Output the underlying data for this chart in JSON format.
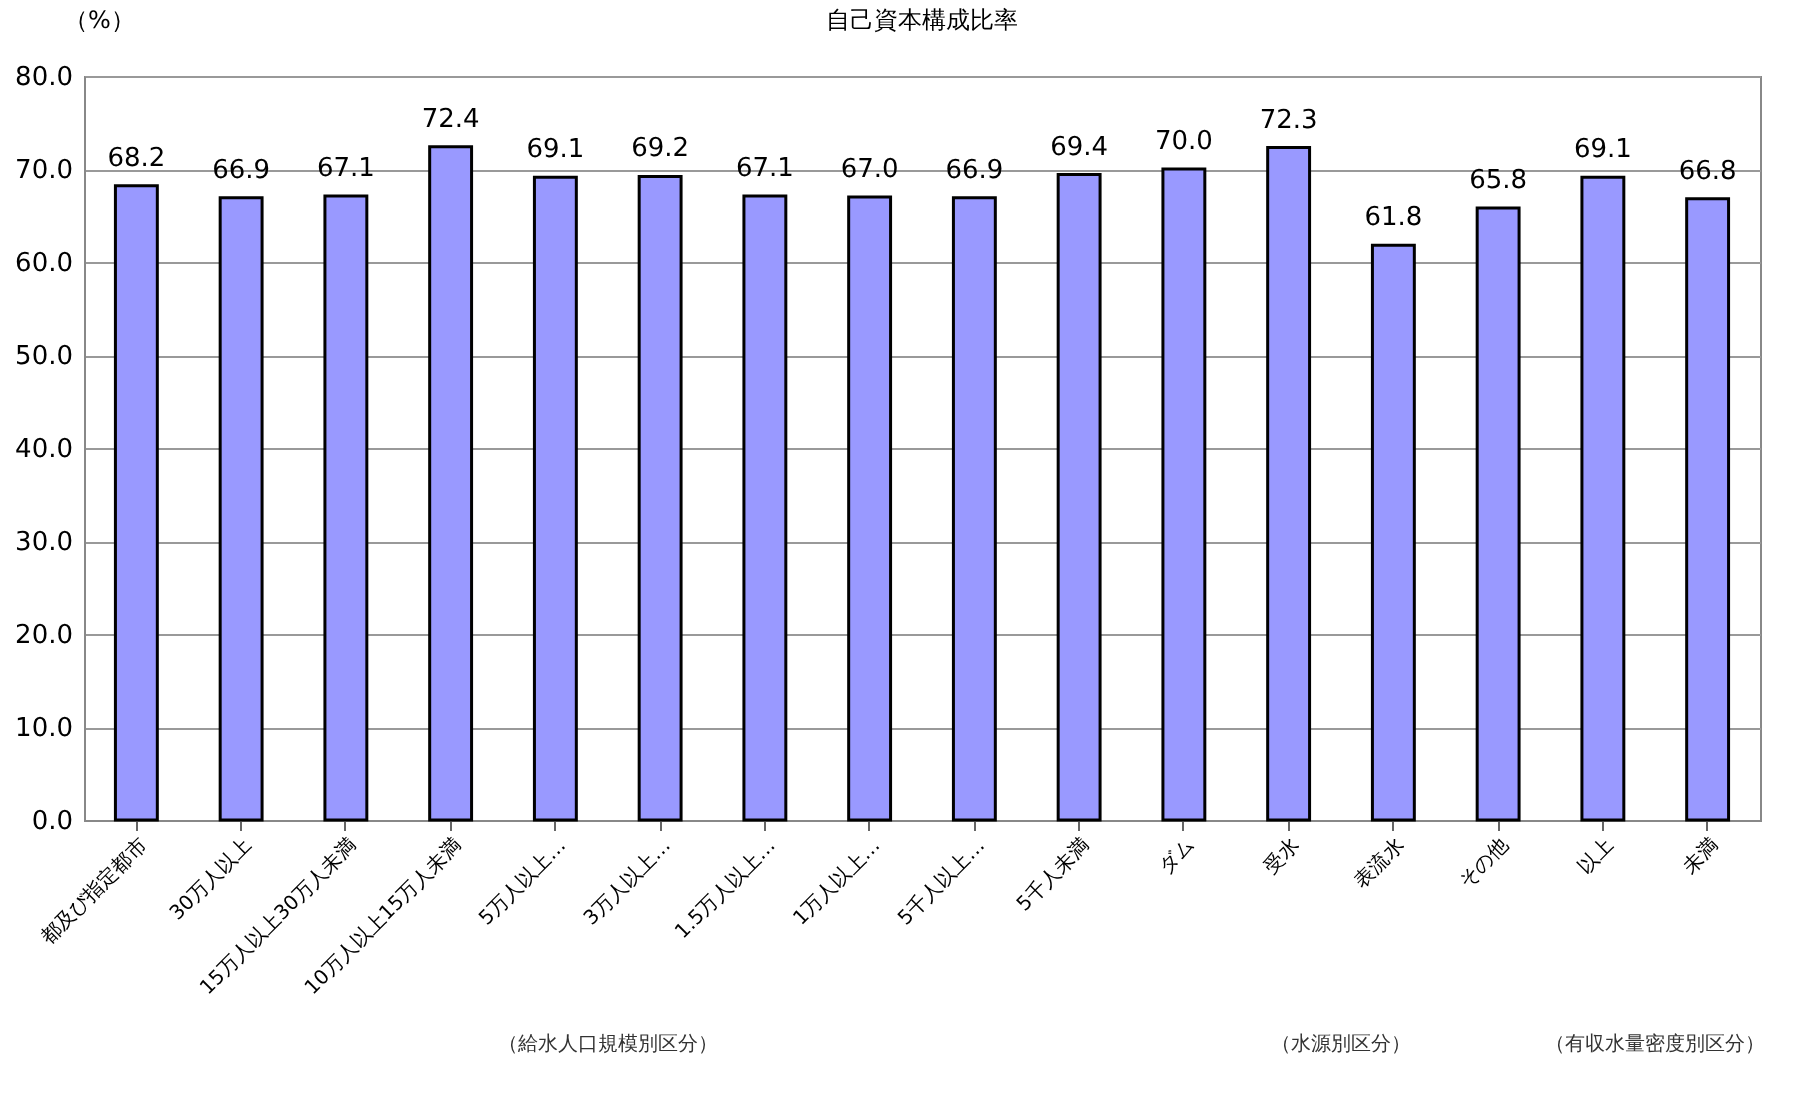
{
  "chart_data": {
    "type": "bar",
    "title": "自己資本構成比率",
    "ylabel": "（%）",
    "categories": [
      "都及び指定都市",
      "30万人以上",
      "15万人以上30万人未満",
      "10万人以上15万人未満",
      "5万人以上…",
      "3万人以上…",
      "1.5万人以上…",
      "1万人以上…",
      "5千人以上…",
      "5千人未満",
      "ダム",
      "受水",
      "表流水",
      "その他",
      "以上",
      "未満"
    ],
    "values": [
      68.2,
      66.9,
      67.1,
      72.4,
      69.1,
      69.2,
      67.1,
      67.0,
      66.9,
      69.4,
      70.0,
      72.3,
      61.8,
      65.8,
      69.1,
      66.8
    ],
    "color": "#9999ff",
    "ylim": [
      0,
      80
    ],
    "yticks": [
      {
        "value": 0,
        "label": "0.0"
      },
      {
        "value": 10,
        "label": "10.0"
      },
      {
        "value": 20,
        "label": "20.0"
      },
      {
        "value": 30,
        "label": "30.0"
      },
      {
        "value": 40,
        "label": "40.0"
      },
      {
        "value": 50,
        "label": "50.0"
      },
      {
        "value": 60,
        "label": "60.0"
      },
      {
        "value": 70,
        "label": "70.0"
      },
      {
        "value": 80,
        "label": "80.0"
      }
    ],
    "value_labels": [
      "68.2",
      "66.9",
      "67.1",
      "72.4",
      "69.1",
      "69.2",
      "67.1",
      "67.0",
      "66.9",
      "69.4",
      "70.0",
      "72.3",
      "61.8",
      "65.8",
      "69.1",
      "66.8"
    ],
    "grid": "y",
    "annotations": [
      "（給水人口規模別区分）",
      "（水源別区分）",
      "（有収水量密度別区分）"
    ]
  }
}
